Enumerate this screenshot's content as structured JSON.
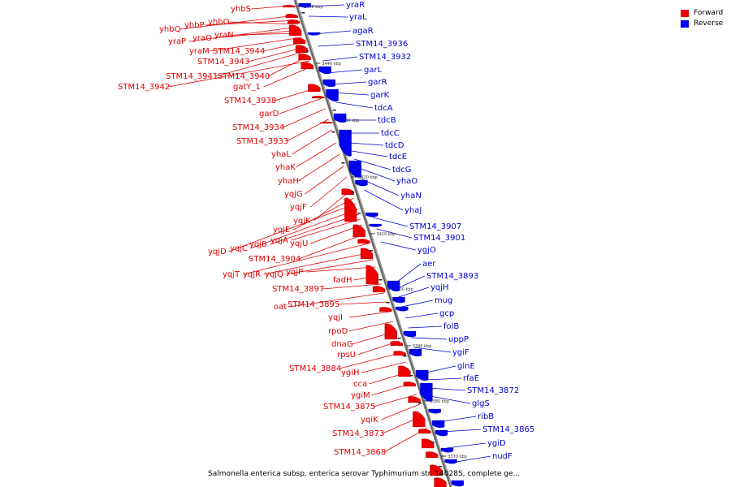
{
  "caption": "Salmonella enterica subsp. enterica serovar Typhimurium str. 14028S, complete ge...",
  "legend": {
    "forward_label": "Forward",
    "reverse_label": "Reverse",
    "forward_color": "#ee0000",
    "reverse_color": "#0000ee"
  },
  "ticks": [
    "3450 kbp",
    "3440 kbp",
    "3430 kbp",
    "3420 kbp",
    "3410 kbp",
    "3400 kbp",
    "3390 kbp",
    "3380 kbp",
    "3370 kbp"
  ],
  "forward_genes": [
    "yhbS",
    "yhbQ",
    "yhbP",
    "yhbO",
    "yraP",
    "yraO",
    "yraN",
    "yraM",
    "STM14_3944",
    "STM14_3943",
    "STM14_3941",
    "STM14_3940",
    "STM14_3942",
    "gatY_1",
    "STM14_3938",
    "garD",
    "STM14_3934",
    "STM14_3933",
    "yhaL",
    "yhaK",
    "yhaH",
    "yqjG",
    "yqjF",
    "yqjK",
    "yqjE",
    "yqjD",
    "yqjC",
    "yqjB",
    "yqjA",
    "yqjU",
    "STM14_3904",
    "yqjT",
    "yqjR",
    "yqjQ",
    "yqjP",
    "fadH",
    "STM14_3897",
    "oat",
    "STM14_3895",
    "yqjI",
    "rpoD",
    "dnaG",
    "rpsU",
    "STM14_3884",
    "ygiH",
    "cca",
    "ygiM",
    "STM14_3875",
    "yqiK",
    "STM14_3873",
    "STM14_3868"
  ],
  "reverse_genes": [
    "yraR",
    "yraL",
    "agaR",
    "STM14_3936",
    "STM14_3932",
    "garL",
    "garR",
    "garK",
    "tdcA",
    "tdcB",
    "tdcC",
    "tdcD",
    "tdcE",
    "tdcG",
    "yhaO",
    "yhaN",
    "yhaJ",
    "STM14_3907",
    "STM14_3901",
    "ygjO",
    "aer",
    "STM14_3893",
    "yqjH",
    "mug",
    "gcp",
    "folB",
    "uppP",
    "ygiF",
    "glnE",
    "rfaE",
    "STM14_3872",
    "glgS",
    "ribB",
    "STM14_3865",
    "ygiD",
    "nudF"
  ]
}
